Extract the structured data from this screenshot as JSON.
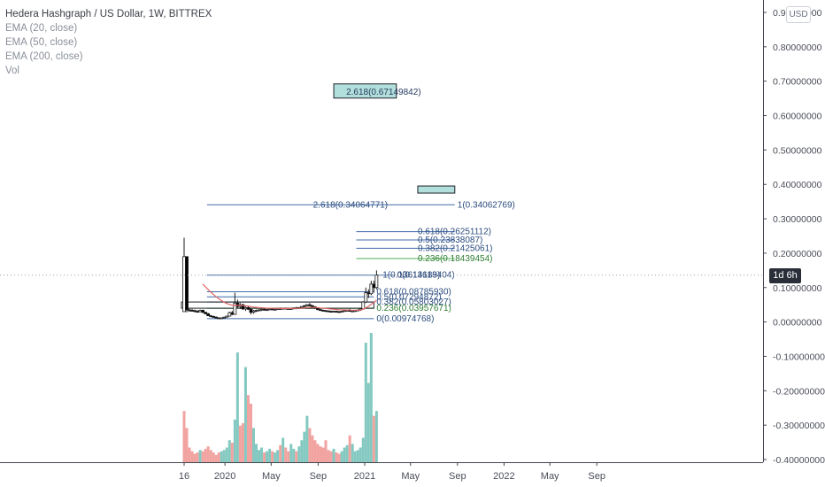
{
  "legend": {
    "title": "Hedera Hashgraph / US Dollar, 1W, BITTREX",
    "ema20": "EMA (20, close)",
    "ema50": "EMA (50, close)",
    "ema200": "EMA (200, close)",
    "vol": "Vol"
  },
  "currency": "USD",
  "countdown": "1d 6h",
  "colors": {
    "up": "#26a69a",
    "down": "#ef5350",
    "fib_line": "#3f6aa8",
    "fib_green": "#4caf50",
    "box_fill": "#b2dfdb",
    "vol_up": "#84c9c1",
    "vol_down": "#f1a3a0",
    "ema_red": "#e06666"
  },
  "chart_data": {
    "type": "candlestick",
    "symbol": "HBAR/USD",
    "interval": "1W",
    "exchange": "BITTREX",
    "y_range": [
      -0.4,
      0.9
    ],
    "y_ticks": [
      "0.90000000",
      "0.80000000",
      "0.70000000",
      "0.60000000",
      "0.50000000",
      "0.40000000",
      "0.30000000",
      "0.20000000",
      "0.10000000",
      "0.00000000",
      "-0.10000000",
      "-0.20000000",
      "-0.30000000",
      "-0.40000000"
    ],
    "y_tick_values": [
      0.9,
      0.8,
      0.7,
      0.6,
      0.5,
      0.4,
      0.3,
      0.2,
      0.1,
      0.0,
      -0.1,
      -0.2,
      -0.3,
      -0.4
    ],
    "x_ticks": [
      {
        "label": "16",
        "date": "2019-09-16"
      },
      {
        "label": "2020",
        "date": "2020-01-01"
      },
      {
        "label": "May",
        "date": "2020-05-01"
      },
      {
        "label": "Sep",
        "date": "2020-09-01"
      },
      {
        "label": "2021",
        "date": "2021-01-01"
      },
      {
        "label": "May",
        "date": "2021-05-01"
      },
      {
        "label": "Sep",
        "date": "2021-09-01"
      },
      {
        "label": "2022",
        "date": "2022-01-01"
      },
      {
        "label": "May",
        "date": "2022-05-01"
      },
      {
        "label": "Sep",
        "date": "2022-09-01"
      }
    ],
    "price_line": 0.1361,
    "candles": [
      {
        "t": "2019-09-16",
        "o": 0.03,
        "h": 0.245,
        "l": 0.03,
        "c": 0.19
      },
      {
        "t": "2019-09-23",
        "o": 0.19,
        "h": 0.19,
        "l": 0.028,
        "c": 0.035
      },
      {
        "t": "2019-09-30",
        "o": 0.035,
        "h": 0.04,
        "l": 0.03,
        "c": 0.034
      },
      {
        "t": "2019-10-07",
        "o": 0.034,
        "h": 0.038,
        "l": 0.03,
        "c": 0.033
      },
      {
        "t": "2019-10-14",
        "o": 0.033,
        "h": 0.036,
        "l": 0.028,
        "c": 0.031
      },
      {
        "t": "2019-10-21",
        "o": 0.031,
        "h": 0.034,
        "l": 0.027,
        "c": 0.03
      },
      {
        "t": "2019-10-28",
        "o": 0.03,
        "h": 0.036,
        "l": 0.028,
        "c": 0.034
      },
      {
        "t": "2019-11-04",
        "o": 0.034,
        "h": 0.036,
        "l": 0.026,
        "c": 0.028
      },
      {
        "t": "2019-11-11",
        "o": 0.028,
        "h": 0.03,
        "l": 0.022,
        "c": 0.024
      },
      {
        "t": "2019-11-18",
        "o": 0.024,
        "h": 0.026,
        "l": 0.017,
        "c": 0.018
      },
      {
        "t": "2019-11-25",
        "o": 0.018,
        "h": 0.02,
        "l": 0.014,
        "c": 0.016
      },
      {
        "t": "2019-12-02",
        "o": 0.016,
        "h": 0.018,
        "l": 0.012,
        "c": 0.014
      },
      {
        "t": "2019-12-09",
        "o": 0.014,
        "h": 0.016,
        "l": 0.011,
        "c": 0.012
      },
      {
        "t": "2019-12-16",
        "o": 0.012,
        "h": 0.013,
        "l": 0.0097,
        "c": 0.011
      },
      {
        "t": "2019-12-23",
        "o": 0.011,
        "h": 0.013,
        "l": 0.0097,
        "c": 0.012
      },
      {
        "t": "2019-12-30",
        "o": 0.012,
        "h": 0.015,
        "l": 0.011,
        "c": 0.014
      },
      {
        "t": "2020-01-06",
        "o": 0.014,
        "h": 0.018,
        "l": 0.013,
        "c": 0.017
      },
      {
        "t": "2020-01-13",
        "o": 0.017,
        "h": 0.03,
        "l": 0.016,
        "c": 0.027
      },
      {
        "t": "2020-01-20",
        "o": 0.027,
        "h": 0.032,
        "l": 0.02,
        "c": 0.022
      },
      {
        "t": "2020-01-27",
        "o": 0.022,
        "h": 0.085,
        "l": 0.021,
        "c": 0.055
      },
      {
        "t": "2020-02-03",
        "o": 0.055,
        "h": 0.065,
        "l": 0.04,
        "c": 0.045
      },
      {
        "t": "2020-02-10",
        "o": 0.045,
        "h": 0.055,
        "l": 0.038,
        "c": 0.05
      },
      {
        "t": "2020-02-17",
        "o": 0.05,
        "h": 0.053,
        "l": 0.035,
        "c": 0.038
      },
      {
        "t": "2020-02-24",
        "o": 0.038,
        "h": 0.045,
        "l": 0.032,
        "c": 0.042
      },
      {
        "t": "2020-03-02",
        "o": 0.042,
        "h": 0.046,
        "l": 0.035,
        "c": 0.037
      },
      {
        "t": "2020-03-09",
        "o": 0.037,
        "h": 0.04,
        "l": 0.022,
        "c": 0.028
      },
      {
        "t": "2020-03-16",
        "o": 0.028,
        "h": 0.035,
        "l": 0.024,
        "c": 0.032
      },
      {
        "t": "2020-03-23",
        "o": 0.032,
        "h": 0.036,
        "l": 0.029,
        "c": 0.034
      },
      {
        "t": "2020-03-30",
        "o": 0.034,
        "h": 0.037,
        "l": 0.031,
        "c": 0.035
      },
      {
        "t": "2020-04-06",
        "o": 0.035,
        "h": 0.039,
        "l": 0.032,
        "c": 0.037
      },
      {
        "t": "2020-04-13",
        "o": 0.037,
        "h": 0.039,
        "l": 0.033,
        "c": 0.035
      },
      {
        "t": "2020-04-20",
        "o": 0.035,
        "h": 0.038,
        "l": 0.032,
        "c": 0.036
      },
      {
        "t": "2020-04-27",
        "o": 0.036,
        "h": 0.04,
        "l": 0.034,
        "c": 0.038
      },
      {
        "t": "2020-05-04",
        "o": 0.038,
        "h": 0.04,
        "l": 0.034,
        "c": 0.036
      },
      {
        "t": "2020-05-11",
        "o": 0.036,
        "h": 0.039,
        "l": 0.033,
        "c": 0.037
      },
      {
        "t": "2020-05-18",
        "o": 0.037,
        "h": 0.04,
        "l": 0.035,
        "c": 0.039
      },
      {
        "t": "2020-05-25",
        "o": 0.039,
        "h": 0.042,
        "l": 0.036,
        "c": 0.038
      },
      {
        "t": "2020-06-01",
        "o": 0.038,
        "h": 0.041,
        "l": 0.036,
        "c": 0.04
      },
      {
        "t": "2020-06-08",
        "o": 0.04,
        "h": 0.042,
        "l": 0.037,
        "c": 0.039
      },
      {
        "t": "2020-06-15",
        "o": 0.039,
        "h": 0.041,
        "l": 0.036,
        "c": 0.038
      },
      {
        "t": "2020-06-22",
        "o": 0.038,
        "h": 0.04,
        "l": 0.036,
        "c": 0.039
      },
      {
        "t": "2020-06-29",
        "o": 0.039,
        "h": 0.042,
        "l": 0.037,
        "c": 0.041
      },
      {
        "t": "2020-07-06",
        "o": 0.041,
        "h": 0.044,
        "l": 0.038,
        "c": 0.04
      },
      {
        "t": "2020-07-13",
        "o": 0.04,
        "h": 0.043,
        "l": 0.038,
        "c": 0.042
      },
      {
        "t": "2020-07-20",
        "o": 0.042,
        "h": 0.046,
        "l": 0.04,
        "c": 0.045
      },
      {
        "t": "2020-07-27",
        "o": 0.045,
        "h": 0.05,
        "l": 0.042,
        "c": 0.047
      },
      {
        "t": "2020-08-03",
        "o": 0.047,
        "h": 0.052,
        "l": 0.045,
        "c": 0.05
      },
      {
        "t": "2020-08-10",
        "o": 0.05,
        "h": 0.055,
        "l": 0.045,
        "c": 0.047
      },
      {
        "t": "2020-08-17",
        "o": 0.047,
        "h": 0.05,
        "l": 0.042,
        "c": 0.044
      },
      {
        "t": "2020-08-24",
        "o": 0.044,
        "h": 0.046,
        "l": 0.038,
        "c": 0.04
      },
      {
        "t": "2020-08-31",
        "o": 0.04,
        "h": 0.042,
        "l": 0.034,
        "c": 0.036
      },
      {
        "t": "2020-09-07",
        "o": 0.036,
        "h": 0.038,
        "l": 0.032,
        "c": 0.034
      },
      {
        "t": "2020-09-14",
        "o": 0.034,
        "h": 0.036,
        "l": 0.031,
        "c": 0.033
      },
      {
        "t": "2020-09-21",
        "o": 0.033,
        "h": 0.035,
        "l": 0.03,
        "c": 0.032
      },
      {
        "t": "2020-09-28",
        "o": 0.032,
        "h": 0.034,
        "l": 0.03,
        "c": 0.031
      },
      {
        "t": "2020-10-05",
        "o": 0.031,
        "h": 0.033,
        "l": 0.029,
        "c": 0.03
      },
      {
        "t": "2020-10-12",
        "o": 0.03,
        "h": 0.033,
        "l": 0.029,
        "c": 0.031
      },
      {
        "t": "2020-10-19",
        "o": 0.031,
        "h": 0.033,
        "l": 0.029,
        "c": 0.03
      },
      {
        "t": "2020-10-26",
        "o": 0.03,
        "h": 0.032,
        "l": 0.028,
        "c": 0.029
      },
      {
        "t": "2020-11-02",
        "o": 0.029,
        "h": 0.032,
        "l": 0.028,
        "c": 0.031
      },
      {
        "t": "2020-11-09",
        "o": 0.031,
        "h": 0.034,
        "l": 0.03,
        "c": 0.033
      },
      {
        "t": "2020-11-16",
        "o": 0.033,
        "h": 0.036,
        "l": 0.031,
        "c": 0.034
      },
      {
        "t": "2020-11-23",
        "o": 0.034,
        "h": 0.038,
        "l": 0.03,
        "c": 0.031
      },
      {
        "t": "2020-11-30",
        "o": 0.031,
        "h": 0.034,
        "l": 0.029,
        "c": 0.032
      },
      {
        "t": "2020-12-07",
        "o": 0.032,
        "h": 0.035,
        "l": 0.03,
        "c": 0.033
      },
      {
        "t": "2020-12-14",
        "o": 0.033,
        "h": 0.036,
        "l": 0.031,
        "c": 0.035
      },
      {
        "t": "2020-12-21",
        "o": 0.035,
        "h": 0.04,
        "l": 0.032,
        "c": 0.038
      },
      {
        "t": "2020-12-28",
        "o": 0.038,
        "h": 0.06,
        "l": 0.036,
        "c": 0.058
      },
      {
        "t": "2021-01-04",
        "o": 0.058,
        "h": 0.1,
        "l": 0.055,
        "c": 0.085
      },
      {
        "t": "2021-01-11",
        "o": 0.085,
        "h": 0.095,
        "l": 0.07,
        "c": 0.082
      },
      {
        "t": "2021-01-18",
        "o": 0.082,
        "h": 0.12,
        "l": 0.078,
        "c": 0.11
      },
      {
        "t": "2021-01-25",
        "o": 0.11,
        "h": 0.12,
        "l": 0.085,
        "c": 0.1
      },
      {
        "t": "2021-02-01",
        "o": 0.1,
        "h": 0.15,
        "l": 0.095,
        "c": 0.1361
      }
    ],
    "volume_scale_max": 100,
    "volume": [
      {
        "t": "2019-09-16",
        "v": 42,
        "dir": "down"
      },
      {
        "t": "2019-09-23",
        "v": 28,
        "dir": "down"
      },
      {
        "t": "2019-09-30",
        "v": 12,
        "dir": "down"
      },
      {
        "t": "2019-10-07",
        "v": 9,
        "dir": "down"
      },
      {
        "t": "2019-10-14",
        "v": 7,
        "dir": "down"
      },
      {
        "t": "2019-10-21",
        "v": 8,
        "dir": "down"
      },
      {
        "t": "2019-10-28",
        "v": 10,
        "dir": "up"
      },
      {
        "t": "2019-11-04",
        "v": 9,
        "dir": "down"
      },
      {
        "t": "2019-11-11",
        "v": 11,
        "dir": "down"
      },
      {
        "t": "2019-11-18",
        "v": 13,
        "dir": "down"
      },
      {
        "t": "2019-11-25",
        "v": 10,
        "dir": "down"
      },
      {
        "t": "2019-12-02",
        "v": 8,
        "dir": "down"
      },
      {
        "t": "2019-12-09",
        "v": 6,
        "dir": "down"
      },
      {
        "t": "2019-12-16",
        "v": 8,
        "dir": "down"
      },
      {
        "t": "2019-12-23",
        "v": 9,
        "dir": "up"
      },
      {
        "t": "2019-12-30",
        "v": 10,
        "dir": "up"
      },
      {
        "t": "2020-01-06",
        "v": 12,
        "dir": "up"
      },
      {
        "t": "2020-01-13",
        "v": 18,
        "dir": "up"
      },
      {
        "t": "2020-01-20",
        "v": 16,
        "dir": "down"
      },
      {
        "t": "2020-01-27",
        "v": 35,
        "dir": "up"
      },
      {
        "t": "2020-02-03",
        "v": 90,
        "dir": "up"
      },
      {
        "t": "2020-02-10",
        "v": 30,
        "dir": "down"
      },
      {
        "t": "2020-02-17",
        "v": 32,
        "dir": "down"
      },
      {
        "t": "2020-02-24",
        "v": 78,
        "dir": "up"
      },
      {
        "t": "2020-03-02",
        "v": 55,
        "dir": "down"
      },
      {
        "t": "2020-03-09",
        "v": 48,
        "dir": "down"
      },
      {
        "t": "2020-03-16",
        "v": 28,
        "dir": "up"
      },
      {
        "t": "2020-03-23",
        "v": 15,
        "dir": "up"
      },
      {
        "t": "2020-03-30",
        "v": 10,
        "dir": "up"
      },
      {
        "t": "2020-04-06",
        "v": 12,
        "dir": "up"
      },
      {
        "t": "2020-04-13",
        "v": 8,
        "dir": "down"
      },
      {
        "t": "2020-04-20",
        "v": 9,
        "dir": "up"
      },
      {
        "t": "2020-04-27",
        "v": 11,
        "dir": "up"
      },
      {
        "t": "2020-05-04",
        "v": 9,
        "dir": "down"
      },
      {
        "t": "2020-05-11",
        "v": 8,
        "dir": "up"
      },
      {
        "t": "2020-05-18",
        "v": 10,
        "dir": "up"
      },
      {
        "t": "2020-05-25",
        "v": 14,
        "dir": "down"
      },
      {
        "t": "2020-06-01",
        "v": 20,
        "dir": "up"
      },
      {
        "t": "2020-06-08",
        "v": 12,
        "dir": "down"
      },
      {
        "t": "2020-06-15",
        "v": 9,
        "dir": "down"
      },
      {
        "t": "2020-06-22",
        "v": 15,
        "dir": "up"
      },
      {
        "t": "2020-06-29",
        "v": 11,
        "dir": "up"
      },
      {
        "t": "2020-07-06",
        "v": 9,
        "dir": "down"
      },
      {
        "t": "2020-07-13",
        "v": 13,
        "dir": "up"
      },
      {
        "t": "2020-07-20",
        "v": 18,
        "dir": "up"
      },
      {
        "t": "2020-07-27",
        "v": 25,
        "dir": "up"
      },
      {
        "t": "2020-08-03",
        "v": 38,
        "dir": "up"
      },
      {
        "t": "2020-08-10",
        "v": 28,
        "dir": "down"
      },
      {
        "t": "2020-08-17",
        "v": 22,
        "dir": "down"
      },
      {
        "t": "2020-08-24",
        "v": 18,
        "dir": "down"
      },
      {
        "t": "2020-08-31",
        "v": 15,
        "dir": "down"
      },
      {
        "t": "2020-09-07",
        "v": 13,
        "dir": "down"
      },
      {
        "t": "2020-09-14",
        "v": 12,
        "dir": "down"
      },
      {
        "t": "2020-09-21",
        "v": 18,
        "dir": "down"
      },
      {
        "t": "2020-09-28",
        "v": 10,
        "dir": "down"
      },
      {
        "t": "2020-10-05",
        "v": 9,
        "dir": "down"
      },
      {
        "t": "2020-10-12",
        "v": 11,
        "dir": "up"
      },
      {
        "t": "2020-10-19",
        "v": 8,
        "dir": "down"
      },
      {
        "t": "2020-10-26",
        "v": 7,
        "dir": "down"
      },
      {
        "t": "2020-11-02",
        "v": 9,
        "dir": "up"
      },
      {
        "t": "2020-11-09",
        "v": 12,
        "dir": "up"
      },
      {
        "t": "2020-11-16",
        "v": 14,
        "dir": "up"
      },
      {
        "t": "2020-11-23",
        "v": 22,
        "dir": "down"
      },
      {
        "t": "2020-11-30",
        "v": 15,
        "dir": "up"
      },
      {
        "t": "2020-12-07",
        "v": 9,
        "dir": "up"
      },
      {
        "t": "2020-12-14",
        "v": 10,
        "dir": "up"
      },
      {
        "t": "2020-12-21",
        "v": 12,
        "dir": "up"
      },
      {
        "t": "2020-12-28",
        "v": 20,
        "dir": "up"
      },
      {
        "t": "2021-01-04",
        "v": 98,
        "dir": "up"
      },
      {
        "t": "2021-01-11",
        "v": 65,
        "dir": "up"
      },
      {
        "t": "2021-01-18",
        "v": 106,
        "dir": "up"
      },
      {
        "t": "2021-01-25",
        "v": 38,
        "dir": "down"
      },
      {
        "t": "2021-02-01",
        "v": 42,
        "dir": "up"
      }
    ],
    "fib_lines": [
      {
        "label": "2.618(0.67149842)",
        "value": 0.6715,
        "from": "2020-10-12",
        "to": "2021-03-25",
        "boxed": true
      },
      {
        "label": "",
        "value": 0.385,
        "from": "2021-05-20",
        "to": "2021-08-25",
        "boxed": true
      },
      {
        "label": "2.618(0.34064771)",
        "value": 0.3406,
        "from": "2019-11-15",
        "to": "2021-03-05",
        "boxed": false
      },
      {
        "label": "1(0.34062769)",
        "value": 0.3406,
        "from": "2021-03-05",
        "to": "2021-08-25",
        "boxed": false
      },
      {
        "label": "0.618(0.26251112)",
        "value": 0.2625,
        "from": "2020-12-10",
        "to": "2021-08-25",
        "boxed": false
      },
      {
        "label": "0.5(0.23838087)",
        "value": 0.2384,
        "from": "2020-12-10",
        "to": "2021-08-25",
        "boxed": false
      },
      {
        "label": "0.382(0.21425061)",
        "value": 0.2143,
        "from": "2020-12-10",
        "to": "2021-08-25",
        "boxed": false
      },
      {
        "label": "0.236(0.18439454)",
        "value": 0.1844,
        "from": "2020-12-10",
        "to": "2021-08-25",
        "green": true,
        "boxed": false
      },
      {
        "label": "1(0.13614189)",
        "value": 0.1361,
        "from": "2019-11-15",
        "to": "2021-02-10",
        "boxed": false
      },
      {
        "label": "0(0.13613404)",
        "value": 0.1361,
        "from": "2021-02-10",
        "to": "2021-03-20",
        "boxed": false
      },
      {
        "label": "0.618(0.08785930)",
        "value": 0.0879,
        "from": "2019-11-15",
        "to": "2021-01-25",
        "boxed": false
      },
      {
        "label": "0.5(0.07294872)",
        "value": 0.0729,
        "from": "2019-11-15",
        "to": "2021-01-25",
        "boxed": false
      },
      {
        "label": "0.382(0.05803027)",
        "value": 0.058,
        "from": "2019-11-15",
        "to": "2021-01-25",
        "boxed": false
      },
      {
        "label": "0.236(0.03957671)",
        "value": 0.0396,
        "from": "2019-11-15",
        "to": "2021-01-25",
        "green": true,
        "boxed": false
      },
      {
        "label": "0(0.00974768)",
        "value": 0.0097,
        "from": "2019-11-15",
        "to": "2021-01-25",
        "boxed": false
      }
    ],
    "legend_entries": [
      "EMA (20, close)",
      "EMA (50, close)",
      "EMA (200, close)",
      "Vol"
    ],
    "grid": false,
    "legend_position": "top-left"
  }
}
